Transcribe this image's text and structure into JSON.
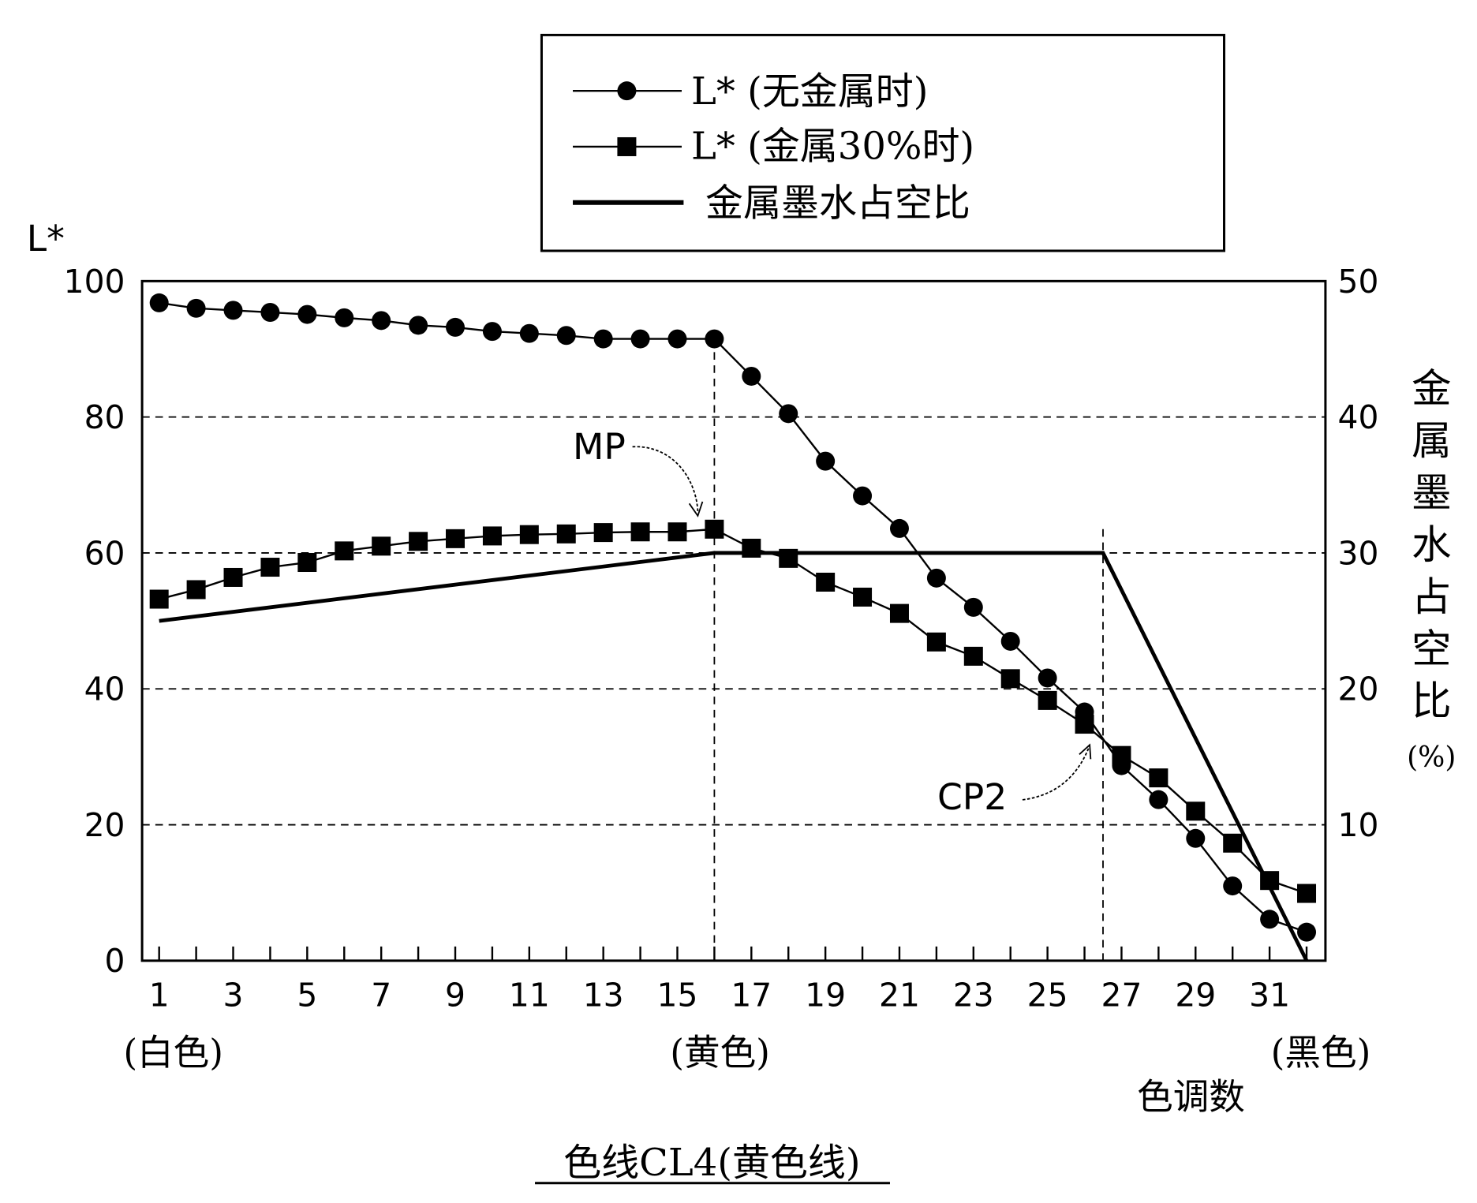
{
  "chart_data": {
    "type": "line",
    "title": "色线CL4(黄色线)",
    "xlabel": "色调数",
    "ylabel": "L*",
    "y2label": [
      "金",
      "属",
      "墨",
      "水",
      "占",
      "空",
      "比",
      "(%)"
    ],
    "xlim": [
      1,
      32
    ],
    "ylim": [
      0,
      100
    ],
    "y2lim": [
      0,
      50
    ],
    "grid": "dashed horizontal at 20, 40, 60, 80",
    "legend_position": "top-center",
    "x_ticks": [
      1,
      3,
      5,
      7,
      9,
      11,
      13,
      15,
      17,
      19,
      21,
      23,
      25,
      27,
      29,
      31
    ],
    "y_ticks": [
      0,
      20,
      40,
      60,
      80,
      100
    ],
    "y2_ticks": [
      10,
      20,
      30,
      40,
      50
    ],
    "category_labels": [
      {
        "x": 1,
        "label": "(白色)"
      },
      {
        "x": 16,
        "label": "(黄色)"
      },
      {
        "x": 32,
        "label": "(黑色)"
      }
    ],
    "reference_lines_x": [
      16,
      26.5
    ],
    "annotations": [
      {
        "label": "MP",
        "x": 16,
        "y": 63.5
      },
      {
        "label": "CP2",
        "x": 26.5,
        "y": 32
      }
    ],
    "x": [
      1,
      2,
      3,
      4,
      5,
      6,
      7,
      8,
      9,
      10,
      11,
      12,
      13,
      14,
      15,
      16,
      17,
      18,
      19,
      20,
      21,
      22,
      23,
      24,
      25,
      26,
      27,
      28,
      29,
      30,
      31,
      32
    ],
    "series": [
      {
        "name": "L* (无金属时)",
        "legend_label": "L*  (无金属时)",
        "marker": "circle",
        "axis": "left",
        "values": [
          96.8,
          96,
          95.7,
          95.4,
          95.1,
          94.6,
          94.2,
          93.5,
          93.2,
          92.6,
          92.3,
          92,
          91.5,
          91.5,
          91.5,
          91.5,
          86,
          80.5,
          73.5,
          68.4,
          63.6,
          56.3,
          52,
          47,
          41.6,
          36.6,
          28.7,
          23.7,
          18,
          11,
          6.1,
          4.2
        ]
      },
      {
        "name": "L* (金属30%时)",
        "legend_label": "L*  (金属30%时)",
        "marker": "square",
        "axis": "left",
        "values": [
          53.2,
          54.6,
          56.4,
          57.9,
          58.6,
          60.3,
          61,
          61.7,
          62.1,
          62.5,
          62.7,
          62.8,
          63,
          63.1,
          63.1,
          63.5,
          60.7,
          59.2,
          55.7,
          53.5,
          51.1,
          46.9,
          44.8,
          41.5,
          38.3,
          34.8,
          30.2,
          26.9,
          22,
          17.3,
          11.8,
          9.9
        ]
      },
      {
        "name": "金属墨水占空比",
        "legend_label": "金属墨水占空比",
        "marker": "none",
        "axis": "right",
        "points": [
          [
            1,
            25
          ],
          [
            16,
            30
          ],
          [
            26.5,
            30
          ],
          [
            32,
            0
          ]
        ]
      }
    ],
    "colors": {
      "ink": "#000000",
      "background": "#ffffff"
    }
  }
}
